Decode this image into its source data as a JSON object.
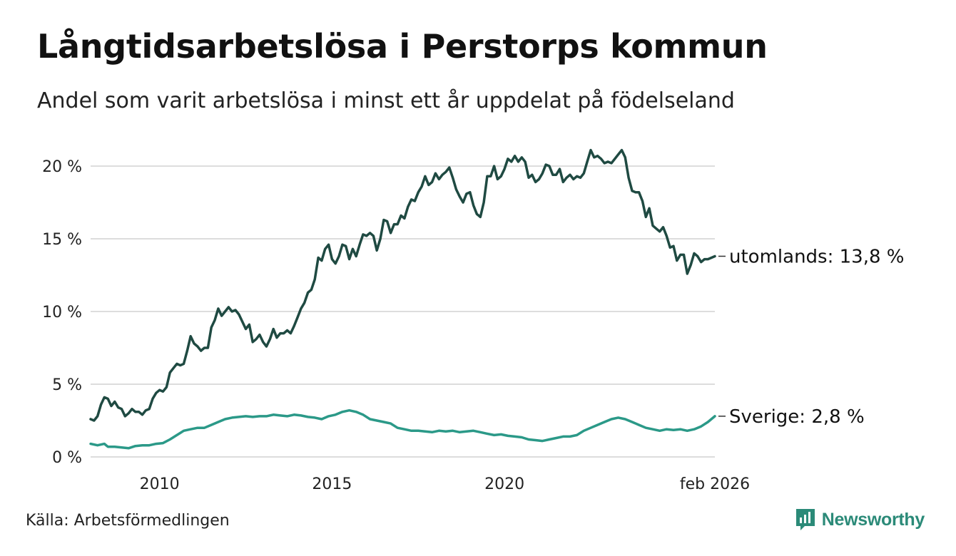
{
  "title": "Långtidsarbetslösa i Perstorps kommun",
  "subtitle": "Andel som varit arbetslösa i minst ett år uppdelat på födelseland",
  "source": "Källa: Arbetsförmedlingen",
  "brand": {
    "name": "Newsworthy",
    "icon": "newsworthy-logo-icon"
  },
  "colors": {
    "utomlands": "#1f4a42",
    "sverige": "#2b9988",
    "grid": "#dddddd"
  },
  "chart_data": {
    "type": "line",
    "title": "Långtidsarbetslösa i Perstorps kommun",
    "xlabel": "",
    "ylabel": "",
    "ylim": [
      0,
      21.5
    ],
    "yticks": [
      {
        "value": 0,
        "label": "0 %"
      },
      {
        "value": 5,
        "label": "5 %"
      },
      {
        "value": 10,
        "label": "10 %"
      },
      {
        "value": 15,
        "label": "15 %"
      },
      {
        "value": 20,
        "label": "20 %"
      }
    ],
    "xrange": [
      2008.0,
      2026.1
    ],
    "xticks": [
      {
        "value": 2010.0,
        "label": "2010"
      },
      {
        "value": 2015.0,
        "label": "2015"
      },
      {
        "value": 2020.0,
        "label": "2020"
      },
      {
        "value": 2026.1,
        "label": "feb 2026"
      }
    ],
    "grid": true,
    "series": [
      {
        "name": "utomlands",
        "label": "utomlands: 13,8 %",
        "points": [
          [
            2008.0,
            2.6
          ],
          [
            2008.1,
            2.5
          ],
          [
            2008.2,
            2.8
          ],
          [
            2008.3,
            3.6
          ],
          [
            2008.4,
            4.1
          ],
          [
            2008.5,
            4.0
          ],
          [
            2008.6,
            3.5
          ],
          [
            2008.7,
            3.8
          ],
          [
            2008.8,
            3.4
          ],
          [
            2008.9,
            3.3
          ],
          [
            2009.0,
            2.8
          ],
          [
            2009.1,
            3.0
          ],
          [
            2009.2,
            3.3
          ],
          [
            2009.3,
            3.1
          ],
          [
            2009.4,
            3.1
          ],
          [
            2009.5,
            2.9
          ],
          [
            2009.6,
            3.2
          ],
          [
            2009.7,
            3.3
          ],
          [
            2009.8,
            4.0
          ],
          [
            2009.9,
            4.4
          ],
          [
            2010.0,
            4.6
          ],
          [
            2010.1,
            4.5
          ],
          [
            2010.2,
            4.8
          ],
          [
            2010.3,
            5.8
          ],
          [
            2010.4,
            6.1
          ],
          [
            2010.5,
            6.4
          ],
          [
            2010.6,
            6.3
          ],
          [
            2010.7,
            6.4
          ],
          [
            2010.8,
            7.3
          ],
          [
            2010.9,
            8.3
          ],
          [
            2011.0,
            7.8
          ],
          [
            2011.1,
            7.6
          ],
          [
            2011.2,
            7.3
          ],
          [
            2011.3,
            7.5
          ],
          [
            2011.4,
            7.5
          ],
          [
            2011.5,
            8.9
          ],
          [
            2011.6,
            9.4
          ],
          [
            2011.7,
            10.2
          ],
          [
            2011.8,
            9.7
          ],
          [
            2011.9,
            10.0
          ],
          [
            2012.0,
            10.3
          ],
          [
            2012.1,
            10.0
          ],
          [
            2012.2,
            10.1
          ],
          [
            2012.3,
            9.8
          ],
          [
            2012.4,
            9.3
          ],
          [
            2012.5,
            8.8
          ],
          [
            2012.6,
            9.1
          ],
          [
            2012.7,
            7.9
          ],
          [
            2012.8,
            8.1
          ],
          [
            2012.9,
            8.4
          ],
          [
            2013.0,
            7.9
          ],
          [
            2013.1,
            7.6
          ],
          [
            2013.2,
            8.1
          ],
          [
            2013.3,
            8.8
          ],
          [
            2013.4,
            8.2
          ],
          [
            2013.5,
            8.5
          ],
          [
            2013.6,
            8.5
          ],
          [
            2013.7,
            8.7
          ],
          [
            2013.8,
            8.5
          ],
          [
            2013.9,
            9.0
          ],
          [
            2014.0,
            9.6
          ],
          [
            2014.1,
            10.2
          ],
          [
            2014.2,
            10.6
          ],
          [
            2014.3,
            11.3
          ],
          [
            2014.4,
            11.5
          ],
          [
            2014.5,
            12.2
          ],
          [
            2014.6,
            13.7
          ],
          [
            2014.7,
            13.5
          ],
          [
            2014.8,
            14.3
          ],
          [
            2014.9,
            14.6
          ],
          [
            2015.0,
            13.6
          ],
          [
            2015.1,
            13.3
          ],
          [
            2015.2,
            13.8
          ],
          [
            2015.3,
            14.6
          ],
          [
            2015.4,
            14.5
          ],
          [
            2015.5,
            13.6
          ],
          [
            2015.6,
            14.3
          ],
          [
            2015.7,
            13.8
          ],
          [
            2015.8,
            14.6
          ],
          [
            2015.9,
            15.3
          ],
          [
            2016.0,
            15.2
          ],
          [
            2016.1,
            15.4
          ],
          [
            2016.2,
            15.2
          ],
          [
            2016.3,
            14.2
          ],
          [
            2016.4,
            15.0
          ],
          [
            2016.5,
            16.3
          ],
          [
            2016.6,
            16.2
          ],
          [
            2016.7,
            15.4
          ],
          [
            2016.8,
            16.0
          ],
          [
            2016.9,
            16.0
          ],
          [
            2017.0,
            16.6
          ],
          [
            2017.1,
            16.4
          ],
          [
            2017.2,
            17.2
          ],
          [
            2017.3,
            17.7
          ],
          [
            2017.4,
            17.6
          ],
          [
            2017.5,
            18.2
          ],
          [
            2017.6,
            18.6
          ],
          [
            2017.7,
            19.3
          ],
          [
            2017.8,
            18.7
          ],
          [
            2017.9,
            18.9
          ],
          [
            2018.0,
            19.5
          ],
          [
            2018.1,
            19.1
          ],
          [
            2018.2,
            19.4
          ],
          [
            2018.3,
            19.6
          ],
          [
            2018.4,
            19.9
          ],
          [
            2018.5,
            19.2
          ],
          [
            2018.6,
            18.4
          ],
          [
            2018.7,
            17.9
          ],
          [
            2018.8,
            17.5
          ],
          [
            2018.9,
            18.1
          ],
          [
            2019.0,
            18.2
          ],
          [
            2019.1,
            17.3
          ],
          [
            2019.2,
            16.7
          ],
          [
            2019.3,
            16.5
          ],
          [
            2019.4,
            17.5
          ],
          [
            2019.5,
            19.3
          ],
          [
            2019.6,
            19.3
          ],
          [
            2019.7,
            20.0
          ],
          [
            2019.8,
            19.1
          ],
          [
            2019.9,
            19.3
          ],
          [
            2020.0,
            19.8
          ],
          [
            2020.1,
            20.5
          ],
          [
            2020.2,
            20.3
          ],
          [
            2020.3,
            20.7
          ],
          [
            2020.4,
            20.3
          ],
          [
            2020.5,
            20.6
          ],
          [
            2020.6,
            20.3
          ],
          [
            2020.7,
            19.2
          ],
          [
            2020.8,
            19.4
          ],
          [
            2020.9,
            18.9
          ],
          [
            2021.0,
            19.1
          ],
          [
            2021.1,
            19.5
          ],
          [
            2021.2,
            20.1
          ],
          [
            2021.3,
            20.0
          ],
          [
            2021.4,
            19.4
          ],
          [
            2021.5,
            19.4
          ],
          [
            2021.6,
            19.8
          ],
          [
            2021.7,
            18.9
          ],
          [
            2021.8,
            19.2
          ],
          [
            2021.9,
            19.4
          ],
          [
            2022.0,
            19.1
          ],
          [
            2022.1,
            19.3
          ],
          [
            2022.2,
            19.2
          ],
          [
            2022.3,
            19.5
          ],
          [
            2022.4,
            20.3
          ],
          [
            2022.5,
            21.1
          ],
          [
            2022.6,
            20.6
          ],
          [
            2022.7,
            20.7
          ],
          [
            2022.8,
            20.5
          ],
          [
            2022.9,
            20.2
          ],
          [
            2023.0,
            20.3
          ],
          [
            2023.1,
            20.2
          ],
          [
            2023.2,
            20.5
          ],
          [
            2023.3,
            20.8
          ],
          [
            2023.4,
            21.1
          ],
          [
            2023.5,
            20.6
          ],
          [
            2023.6,
            19.2
          ],
          [
            2023.7,
            18.3
          ],
          [
            2023.8,
            18.2
          ],
          [
            2023.9,
            18.2
          ],
          [
            2024.0,
            17.6
          ],
          [
            2024.1,
            16.5
          ],
          [
            2024.2,
            17.1
          ],
          [
            2024.3,
            15.9
          ],
          [
            2024.4,
            15.7
          ],
          [
            2024.5,
            15.5
          ],
          [
            2024.6,
            15.8
          ],
          [
            2024.7,
            15.2
          ],
          [
            2024.8,
            14.4
          ],
          [
            2024.9,
            14.5
          ],
          [
            2025.0,
            13.5
          ],
          [
            2025.1,
            13.9
          ],
          [
            2025.2,
            13.9
          ],
          [
            2025.3,
            12.6
          ],
          [
            2025.4,
            13.2
          ],
          [
            2025.5,
            14.0
          ],
          [
            2025.6,
            13.8
          ],
          [
            2025.7,
            13.4
          ],
          [
            2025.8,
            13.6
          ],
          [
            2025.9,
            13.6
          ],
          [
            2026.1,
            13.8
          ]
        ]
      },
      {
        "name": "Sverige",
        "label": "Sverige:  2,8 %",
        "points": [
          [
            2008.0,
            0.9
          ],
          [
            2008.2,
            0.8
          ],
          [
            2008.4,
            0.9
          ],
          [
            2008.5,
            0.7
          ],
          [
            2008.7,
            0.7
          ],
          [
            2008.9,
            0.65
          ],
          [
            2009.1,
            0.6
          ],
          [
            2009.3,
            0.75
          ],
          [
            2009.5,
            0.8
          ],
          [
            2009.7,
            0.8
          ],
          [
            2009.9,
            0.9
          ],
          [
            2010.1,
            0.95
          ],
          [
            2010.3,
            1.2
          ],
          [
            2010.5,
            1.5
          ],
          [
            2010.7,
            1.8
          ],
          [
            2010.9,
            1.9
          ],
          [
            2011.1,
            2.0
          ],
          [
            2011.3,
            2.0
          ],
          [
            2011.5,
            2.2
          ],
          [
            2011.7,
            2.4
          ],
          [
            2011.9,
            2.6
          ],
          [
            2012.1,
            2.7
          ],
          [
            2012.3,
            2.75
          ],
          [
            2012.5,
            2.8
          ],
          [
            2012.7,
            2.75
          ],
          [
            2012.9,
            2.8
          ],
          [
            2013.1,
            2.8
          ],
          [
            2013.3,
            2.9
          ],
          [
            2013.5,
            2.85
          ],
          [
            2013.7,
            2.8
          ],
          [
            2013.9,
            2.9
          ],
          [
            2014.1,
            2.85
          ],
          [
            2014.3,
            2.75
          ],
          [
            2014.5,
            2.7
          ],
          [
            2014.7,
            2.6
          ],
          [
            2014.9,
            2.8
          ],
          [
            2015.1,
            2.9
          ],
          [
            2015.3,
            3.1
          ],
          [
            2015.5,
            3.2
          ],
          [
            2015.7,
            3.1
          ],
          [
            2015.9,
            2.9
          ],
          [
            2016.1,
            2.6
          ],
          [
            2016.3,
            2.5
          ],
          [
            2016.5,
            2.4
          ],
          [
            2016.7,
            2.3
          ],
          [
            2016.9,
            2.0
          ],
          [
            2017.1,
            1.9
          ],
          [
            2017.3,
            1.8
          ],
          [
            2017.5,
            1.8
          ],
          [
            2017.7,
            1.75
          ],
          [
            2017.9,
            1.7
          ],
          [
            2018.1,
            1.8
          ],
          [
            2018.3,
            1.75
          ],
          [
            2018.5,
            1.8
          ],
          [
            2018.7,
            1.7
          ],
          [
            2018.9,
            1.75
          ],
          [
            2019.1,
            1.8
          ],
          [
            2019.3,
            1.7
          ],
          [
            2019.5,
            1.6
          ],
          [
            2019.7,
            1.5
          ],
          [
            2019.9,
            1.55
          ],
          [
            2020.1,
            1.45
          ],
          [
            2020.3,
            1.4
          ],
          [
            2020.5,
            1.35
          ],
          [
            2020.7,
            1.2
          ],
          [
            2020.9,
            1.15
          ],
          [
            2021.1,
            1.1
          ],
          [
            2021.3,
            1.2
          ],
          [
            2021.5,
            1.3
          ],
          [
            2021.7,
            1.4
          ],
          [
            2021.9,
            1.4
          ],
          [
            2022.1,
            1.5
          ],
          [
            2022.3,
            1.8
          ],
          [
            2022.5,
            2.0
          ],
          [
            2022.7,
            2.2
          ],
          [
            2022.9,
            2.4
          ],
          [
            2023.1,
            2.6
          ],
          [
            2023.3,
            2.7
          ],
          [
            2023.5,
            2.6
          ],
          [
            2023.7,
            2.4
          ],
          [
            2023.9,
            2.2
          ],
          [
            2024.1,
            2.0
          ],
          [
            2024.3,
            1.9
          ],
          [
            2024.5,
            1.8
          ],
          [
            2024.7,
            1.9
          ],
          [
            2024.9,
            1.85
          ],
          [
            2025.1,
            1.9
          ],
          [
            2025.3,
            1.8
          ],
          [
            2025.5,
            1.9
          ],
          [
            2025.7,
            2.1
          ],
          [
            2025.9,
            2.4
          ],
          [
            2026.1,
            2.8
          ]
        ]
      }
    ]
  }
}
